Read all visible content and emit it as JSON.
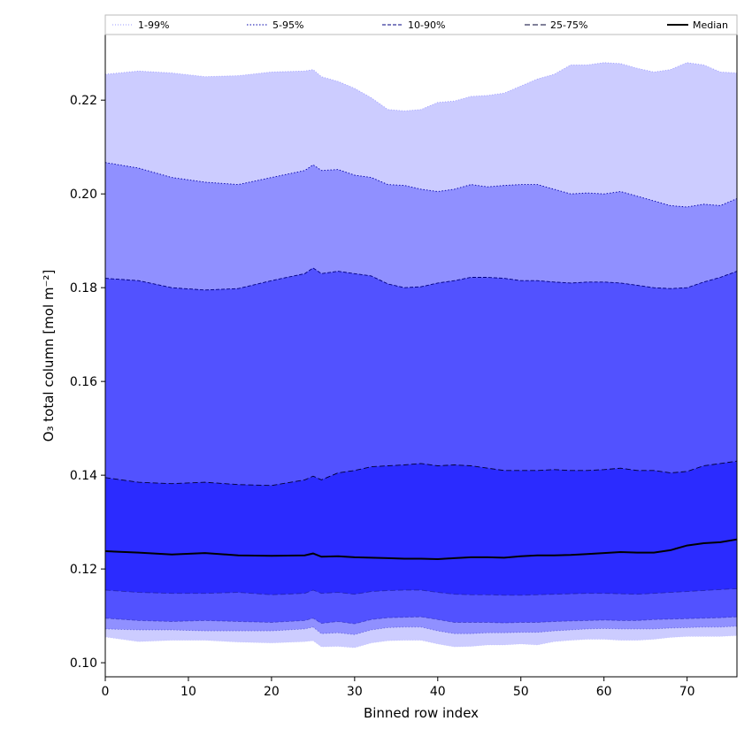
{
  "chart_data": {
    "type": "area",
    "xlabel": "Binned row index",
    "ylabel": "O₃ total column [mol m⁻²]",
    "xlim": [
      0,
      76
    ],
    "ylim": [
      0.097,
      0.234
    ],
    "xticks": [
      0,
      10,
      20,
      30,
      40,
      50,
      60,
      70
    ],
    "yticks": [
      0.1,
      0.12,
      0.14,
      0.16,
      0.18,
      0.2,
      0.22
    ],
    "grid": false,
    "legend_position": "top",
    "x": [
      0,
      4,
      8,
      12,
      16,
      20,
      24,
      25,
      26,
      28,
      30,
      32,
      34,
      36,
      38,
      40,
      42,
      44,
      46,
      48,
      50,
      52,
      54,
      56,
      58,
      60,
      62,
      64,
      66,
      68,
      70,
      72,
      74,
      76
    ],
    "bands": [
      {
        "name": "1-99%",
        "color": "#ccccff",
        "line_color": "#9999ff",
        "dash": "1 2",
        "lower": [
          0.1055,
          0.1045,
          0.1048,
          0.1048,
          0.1044,
          0.1042,
          0.1045,
          0.1047,
          0.1034,
          0.1035,
          0.1032,
          0.1042,
          0.1047,
          0.1048,
          0.1048,
          0.104,
          0.1034,
          0.1035,
          0.1038,
          0.1038,
          0.104,
          0.1038,
          0.1045,
          0.1048,
          0.105,
          0.105,
          0.1048,
          0.1048,
          0.105,
          0.1054,
          0.1056,
          0.1056,
          0.1056,
          0.1058
        ],
        "upper": [
          0.2255,
          0.2262,
          0.2258,
          0.225,
          0.2252,
          0.226,
          0.2262,
          0.2265,
          0.225,
          0.224,
          0.2225,
          0.2205,
          0.218,
          0.2177,
          0.218,
          0.2195,
          0.2198,
          0.2208,
          0.221,
          0.2215,
          0.223,
          0.2245,
          0.2255,
          0.2275,
          0.2275,
          0.228,
          0.2278,
          0.2268,
          0.226,
          0.2265,
          0.228,
          0.2275,
          0.226,
          0.2258
        ]
      },
      {
        "name": "5-95%",
        "color": "#9090ff",
        "line_color": "#0000aa",
        "dash": "1.5 2",
        "lower": [
          0.1072,
          0.107,
          0.107,
          0.1068,
          0.1068,
          0.1068,
          0.1072,
          0.1076,
          0.1062,
          0.1064,
          0.106,
          0.107,
          0.1075,
          0.1076,
          0.1076,
          0.1068,
          0.1062,
          0.1062,
          0.1064,
          0.1064,
          0.1065,
          0.1065,
          0.1068,
          0.107,
          0.1072,
          0.1073,
          0.1072,
          0.1072,
          0.1072,
          0.1074,
          0.1075,
          0.1076,
          0.1076,
          0.1078
        ],
        "upper": [
          0.2067,
          0.2055,
          0.2035,
          0.2025,
          0.202,
          0.2035,
          0.205,
          0.2062,
          0.205,
          0.2052,
          0.204,
          0.2035,
          0.202,
          0.2018,
          0.201,
          0.2005,
          0.201,
          0.202,
          0.2015,
          0.2018,
          0.202,
          0.202,
          0.201,
          0.2,
          0.2002,
          0.2,
          0.2005,
          0.1995,
          0.1985,
          0.1975,
          0.1972,
          0.1978,
          0.1975,
          0.199
        ]
      },
      {
        "name": "10-90%",
        "color": "#5252ff",
        "line_color": "#000080",
        "dash": "4 2",
        "lower": [
          0.1095,
          0.109,
          0.1088,
          0.109,
          0.1088,
          0.1086,
          0.109,
          0.1095,
          0.1084,
          0.1088,
          0.1083,
          0.1092,
          0.1096,
          0.1097,
          0.1098,
          0.1092,
          0.1086,
          0.1086,
          0.1086,
          0.1085,
          0.1086,
          0.1086,
          0.1088,
          0.1089,
          0.109,
          0.1091,
          0.109,
          0.109,
          0.1092,
          0.1093,
          0.1094,
          0.1095,
          0.1096,
          0.1098
        ],
        "upper": [
          0.182,
          0.1815,
          0.18,
          0.1795,
          0.1798,
          0.1815,
          0.183,
          0.1842,
          0.183,
          0.1835,
          0.183,
          0.1825,
          0.1808,
          0.18,
          0.1802,
          0.181,
          0.1815,
          0.1822,
          0.1822,
          0.182,
          0.1815,
          0.1815,
          0.1812,
          0.181,
          0.1812,
          0.1812,
          0.181,
          0.1805,
          0.18,
          0.1798,
          0.18,
          0.1812,
          0.1822,
          0.1835
        ]
      },
      {
        "name": "25-75%",
        "color": "#2b2bff",
        "line_color": "#000033",
        "dash": "6 3",
        "lower": [
          0.1155,
          0.115,
          0.1148,
          0.1148,
          0.115,
          0.1145,
          0.1148,
          0.1155,
          0.1148,
          0.115,
          0.1146,
          0.1152,
          0.1154,
          0.1155,
          0.1155,
          0.115,
          0.1146,
          0.1145,
          0.1145,
          0.1144,
          0.1144,
          0.1145,
          0.1146,
          0.1147,
          0.1148,
          0.1148,
          0.1147,
          0.1146,
          0.1148,
          0.115,
          0.1152,
          0.1154,
          0.1156,
          0.1158
        ],
        "upper": [
          0.1395,
          0.1385,
          0.1382,
          0.1385,
          0.138,
          0.1378,
          0.139,
          0.1398,
          0.139,
          0.1405,
          0.141,
          0.1418,
          0.142,
          0.1422,
          0.1425,
          0.142,
          0.1422,
          0.142,
          0.1415,
          0.141,
          0.141,
          0.141,
          0.1412,
          0.141,
          0.141,
          0.1412,
          0.1415,
          0.141,
          0.141,
          0.1405,
          0.1408,
          0.142,
          0.1425,
          0.143
        ]
      }
    ],
    "median": {
      "name": "Median",
      "color": "#000000",
      "values": [
        0.1238,
        0.1235,
        0.1231,
        0.1234,
        0.1229,
        0.1228,
        0.1229,
        0.1233,
        0.1226,
        0.1227,
        0.1225,
        0.1224,
        0.1223,
        0.1222,
        0.1222,
        0.1221,
        0.1223,
        0.1225,
        0.1225,
        0.1224,
        0.1227,
        0.1229,
        0.1229,
        0.123,
        0.1232,
        0.1234,
        0.1236,
        0.1235,
        0.1235,
        0.124,
        0.125,
        0.1255,
        0.1257,
        0.1263
      ]
    }
  }
}
